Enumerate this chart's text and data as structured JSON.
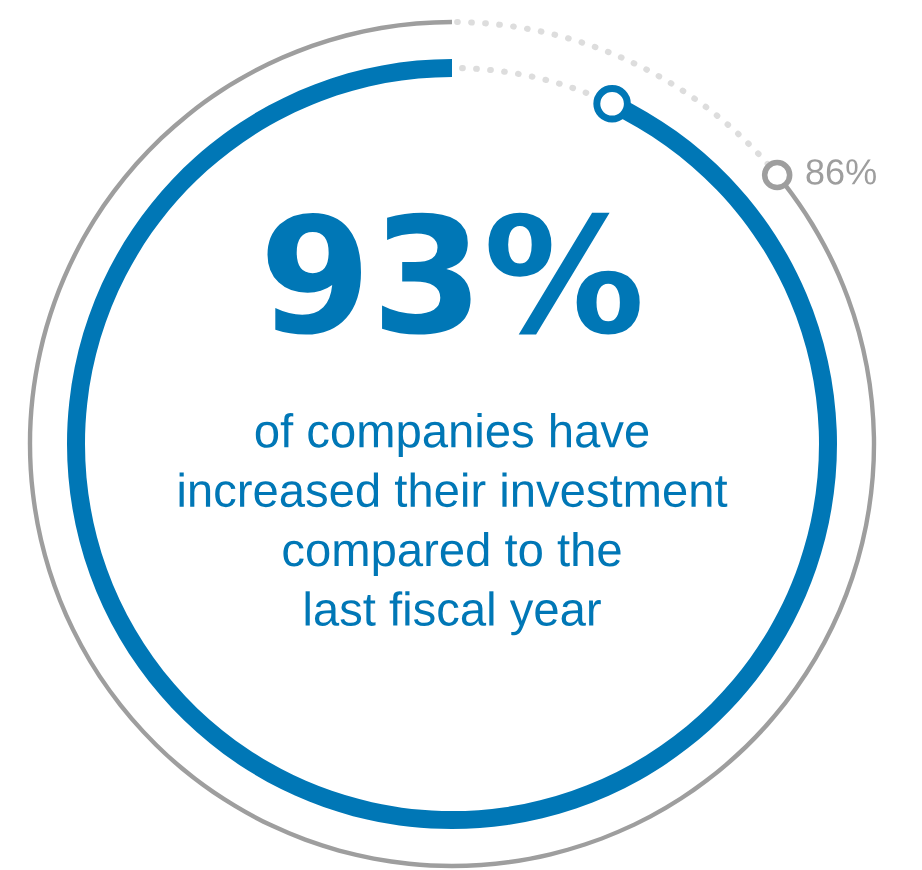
{
  "chart_data": {
    "type": "other",
    "categories": [
      null,
      null
    ],
    "values": [
      93,
      86
    ],
    "colors": [
      "#0077b6",
      "#9e9e9e"
    ],
    "value_labels": [
      "93%",
      "86%"
    ],
    "annotations": [
      "of companies have\nincreased their investment\ncompared to the\nlast fiscal year"
    ]
  }
}
